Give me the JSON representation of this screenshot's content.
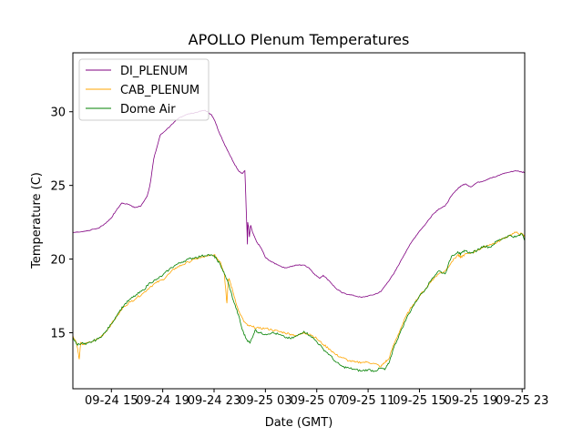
{
  "chart_data": {
    "type": "line",
    "title": "APOLLO Plenum Temperatures",
    "xlabel": "Date (GMT)",
    "ylabel": "Temperature (C)",
    "xlim": [
      12.0,
      47.2
    ],
    "ylim": [
      11.2,
      34.0
    ],
    "x_unit": "hours since 09-24 00:00 GMT",
    "x_ticks": [
      {
        "value": 15,
        "label": "09-24 15"
      },
      {
        "value": 19,
        "label": "09-24 19"
      },
      {
        "value": 23,
        "label": "09-24 23"
      },
      {
        "value": 27,
        "label": "09-25 03"
      },
      {
        "value": 31,
        "label": "09-25 07"
      },
      {
        "value": 35,
        "label": "09-25 11"
      },
      {
        "value": 39,
        "label": "09-25 15"
      },
      {
        "value": 43,
        "label": "09-25 19"
      },
      {
        "value": 47,
        "label": "09-25 23"
      }
    ],
    "y_ticks": [
      {
        "value": 15,
        "label": "15"
      },
      {
        "value": 20,
        "label": "20"
      },
      {
        "value": 25,
        "label": "25"
      },
      {
        "value": 30,
        "label": "30"
      }
    ],
    "legend_position": "top-left",
    "series": [
      {
        "name": "DI_PLENUM",
        "color": "#800080",
        "x": [
          12.0,
          13.0,
          14.0,
          14.5,
          15.0,
          15.3,
          15.8,
          16.4,
          16.8,
          17.3,
          17.8,
          18.0,
          18.3,
          18.8,
          19.3,
          19.8,
          20.3,
          20.8,
          21.3,
          21.8,
          22.3,
          22.8,
          23.1,
          23.4,
          23.7,
          24.1,
          24.5,
          24.9,
          25.2,
          25.4,
          25.6,
          25.62,
          25.68,
          25.75,
          25.85,
          26.0,
          26.3,
          26.7,
          27.0,
          27.5,
          28.0,
          28.5,
          29.0,
          29.5,
          30.0,
          30.4,
          30.8,
          31.2,
          31.5,
          32.0,
          32.5,
          33.0,
          33.5,
          34.0,
          34.5,
          35.0,
          35.5,
          36.0,
          36.5,
          37.0,
          37.5,
          38.0,
          38.5,
          39.0,
          39.5,
          40.0,
          40.5,
          41.0,
          41.5,
          42.0,
          42.3,
          42.6,
          43.0,
          43.5,
          44.0,
          44.5,
          45.0,
          45.5,
          46.0,
          46.5,
          47.0,
          47.2
        ],
        "values": [
          21.8,
          21.9,
          22.1,
          22.4,
          22.8,
          23.2,
          23.8,
          23.7,
          23.5,
          23.6,
          24.3,
          25.0,
          26.8,
          28.4,
          28.8,
          29.2,
          29.6,
          29.8,
          29.9,
          30.0,
          30.1,
          29.8,
          29.3,
          28.6,
          28.0,
          27.3,
          26.6,
          26.0,
          25.8,
          26.0,
          21.0,
          22.5,
          22.2,
          21.5,
          22.3,
          21.8,
          21.2,
          20.7,
          20.1,
          19.8,
          19.6,
          19.4,
          19.5,
          19.6,
          19.6,
          19.4,
          19.0,
          18.7,
          18.9,
          18.5,
          18.0,
          17.7,
          17.6,
          17.5,
          17.4,
          17.5,
          17.6,
          17.8,
          18.4,
          19.0,
          19.8,
          20.6,
          21.3,
          21.9,
          22.4,
          23.0,
          23.4,
          23.6,
          24.3,
          24.8,
          25.0,
          25.1,
          24.9,
          25.2,
          25.3,
          25.5,
          25.6,
          25.8,
          25.9,
          26.0,
          25.9,
          25.9
        ]
      },
      {
        "name": "CAB_PLENUM",
        "color": "#ffa500",
        "x": [
          12.0,
          12.3,
          12.5,
          12.6,
          12.8,
          13.5,
          14.0,
          14.5,
          15.0,
          15.5,
          16.0,
          16.5,
          17.0,
          17.5,
          18.0,
          18.5,
          19.0,
          19.5,
          20.0,
          20.5,
          21.0,
          21.5,
          22.0,
          22.5,
          23.0,
          23.2,
          23.5,
          23.8,
          24.0,
          24.1,
          24.2,
          24.5,
          24.9,
          25.3,
          25.6,
          26.0,
          26.5,
          27.0,
          27.5,
          28.0,
          28.5,
          29.0,
          29.5,
          30.0,
          30.5,
          31.0,
          31.5,
          32.0,
          32.5,
          33.0,
          33.5,
          34.0,
          34.5,
          35.0,
          35.5,
          36.0,
          36.3,
          36.6,
          37.0,
          37.5,
          38.0,
          38.5,
          39.0,
          39.5,
          40.0,
          40.5,
          41.0,
          41.5,
          42.0,
          42.2,
          42.5,
          43.0,
          43.5,
          44.0,
          44.5,
          45.0,
          45.5,
          46.0,
          46.5,
          47.0,
          47.2
        ],
        "values": [
          14.8,
          14.3,
          13.2,
          14.3,
          14.2,
          14.4,
          14.6,
          15.0,
          15.6,
          16.2,
          16.8,
          17.1,
          17.4,
          17.7,
          18.1,
          18.4,
          18.6,
          19.0,
          19.4,
          19.6,
          19.8,
          20.0,
          20.1,
          20.2,
          20.3,
          20.1,
          19.8,
          19.0,
          17.0,
          18.6,
          18.6,
          17.7,
          16.5,
          15.8,
          15.5,
          15.4,
          15.3,
          15.3,
          15.2,
          15.1,
          15.0,
          14.9,
          14.8,
          15.0,
          14.9,
          14.6,
          14.2,
          13.9,
          13.5,
          13.3,
          13.1,
          13.0,
          13.0,
          13.0,
          12.9,
          12.7,
          13.0,
          13.2,
          14.2,
          15.2,
          16.2,
          16.9,
          17.5,
          18.0,
          18.6,
          19.0,
          19.2,
          19.8,
          20.3,
          20.1,
          20.3,
          20.4,
          20.6,
          20.8,
          21.0,
          21.1,
          21.4,
          21.6,
          21.8,
          21.7,
          21.5
        ]
      },
      {
        "name": "Dome Air",
        "color": "#008000",
        "x": [
          12.0,
          12.3,
          12.7,
          13.0,
          13.5,
          14.0,
          14.5,
          15.0,
          15.5,
          16.0,
          16.5,
          17.0,
          17.5,
          18.0,
          18.5,
          19.0,
          19.5,
          20.0,
          20.5,
          21.0,
          21.5,
          22.0,
          22.5,
          23.0,
          23.2,
          23.5,
          23.8,
          24.1,
          24.5,
          24.9,
          25.2,
          25.5,
          25.8,
          26.2,
          26.5,
          27.0,
          27.5,
          28.0,
          28.5,
          29.0,
          29.5,
          30.0,
          30.5,
          31.0,
          31.5,
          32.0,
          32.5,
          33.0,
          33.5,
          34.0,
          34.5,
          35.0,
          35.5,
          36.0,
          36.3,
          36.6,
          37.0,
          37.5,
          38.0,
          38.5,
          39.0,
          39.5,
          40.0,
          40.5,
          41.0,
          41.5,
          42.0,
          42.2,
          42.5,
          43.0,
          43.5,
          44.0,
          44.5,
          45.0,
          45.5,
          46.0,
          46.5,
          47.0,
          47.2
        ],
        "values": [
          14.7,
          14.2,
          14.3,
          14.2,
          14.4,
          14.6,
          15.0,
          15.6,
          16.3,
          16.9,
          17.3,
          17.6,
          17.9,
          18.4,
          18.6,
          18.9,
          19.3,
          19.6,
          19.8,
          20.0,
          20.1,
          20.2,
          20.3,
          20.2,
          20.0,
          19.6,
          19.0,
          18.4,
          17.2,
          16.2,
          15.2,
          14.6,
          14.3,
          15.2,
          15.0,
          14.9,
          15.0,
          14.9,
          14.7,
          14.6,
          14.8,
          15.1,
          14.8,
          14.4,
          13.9,
          13.5,
          13.0,
          12.7,
          12.6,
          12.5,
          12.4,
          12.5,
          12.4,
          12.6,
          12.5,
          12.9,
          14.0,
          15.0,
          16.0,
          16.8,
          17.5,
          18.0,
          18.7,
          19.2,
          19.0,
          20.2,
          20.5,
          20.3,
          20.6,
          20.4,
          20.6,
          20.9,
          20.8,
          21.2,
          21.4,
          21.6,
          21.5,
          21.7,
          21.3
        ]
      }
    ]
  }
}
